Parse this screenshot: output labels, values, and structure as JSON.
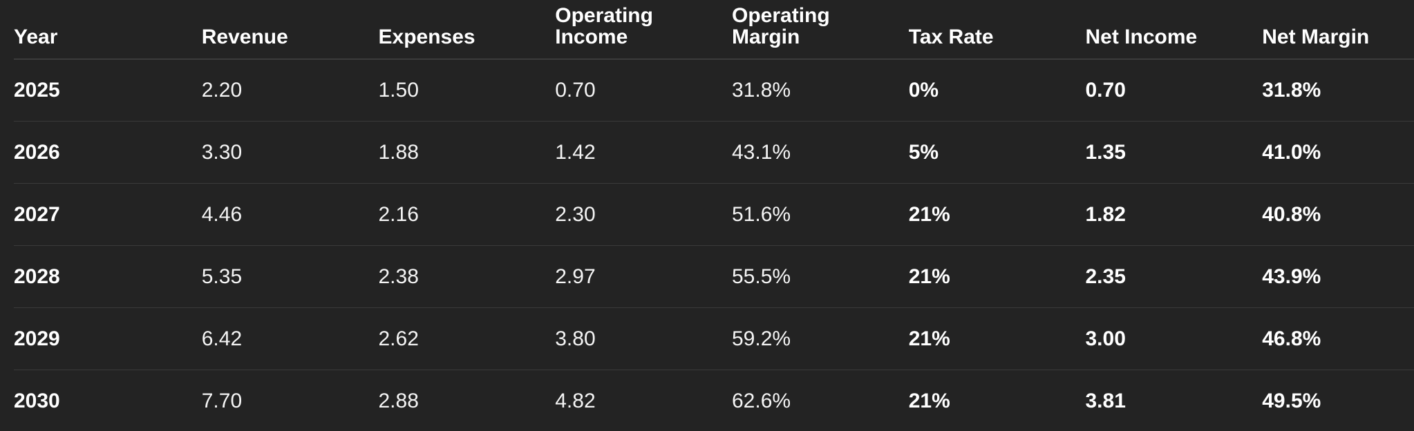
{
  "table": {
    "title": "financial-projection-table",
    "headers": [
      "Year",
      "Revenue",
      "Expenses",
      "Operating Income",
      "Operating Margin",
      "Tax Rate",
      "Net Income",
      "Net Margin"
    ],
    "bold_columns": [
      0,
      5,
      6,
      7
    ],
    "rows": [
      {
        "cells": [
          "2025",
          "2.20",
          "1.50",
          "0.70",
          "31.8%",
          "0%",
          "0.70",
          "31.8%"
        ]
      },
      {
        "cells": [
          "2026",
          "3.30",
          "1.88",
          "1.42",
          "43.1%",
          "5%",
          "1.35",
          "41.0%"
        ]
      },
      {
        "cells": [
          "2027",
          "4.46",
          "2.16",
          "2.30",
          "51.6%",
          "21%",
          "1.82",
          "40.8%"
        ]
      },
      {
        "cells": [
          "2028",
          "5.35",
          "2.38",
          "2.97",
          "55.5%",
          "21%",
          "2.35",
          "43.9%"
        ]
      },
      {
        "cells": [
          "2029",
          "6.42",
          "2.62",
          "3.80",
          "59.2%",
          "21%",
          "3.00",
          "46.8%"
        ]
      },
      {
        "cells": [
          "2030",
          "7.70",
          "2.88",
          "4.82",
          "62.6%",
          "21%",
          "3.81",
          "49.5%"
        ]
      }
    ]
  },
  "colors": {
    "background": "#232323",
    "text_primary": "#ffffff",
    "text_regular": "#f5f5f5",
    "row_divider": "#3a3a3a",
    "header_divider": "#515151"
  }
}
